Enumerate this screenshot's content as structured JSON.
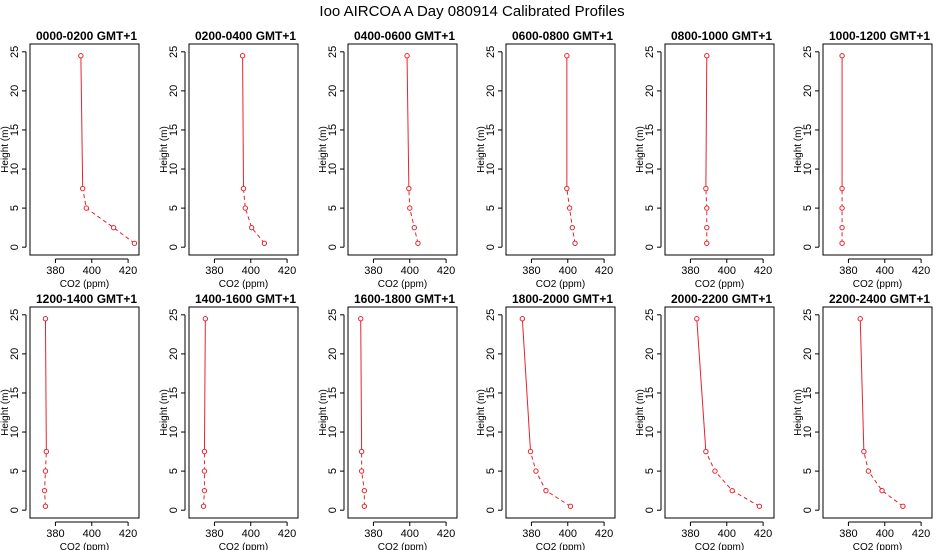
{
  "title": "Ioo AIRCOA A  Day 080914  Calibrated Profiles",
  "colors": {
    "line": "#e8232d",
    "axis": "#000000",
    "background": "#ffffff"
  },
  "chart_data": [
    {
      "type": "line",
      "title": "0000-0200 GMT+1",
      "xlabel": "CO2 (ppm)",
      "ylabel": "Height (m)",
      "xlim": [
        366,
        426
      ],
      "ylim": [
        -1,
        26
      ],
      "xticks": [
        380,
        400,
        420
      ],
      "yticks": [
        0,
        5,
        10,
        15,
        20,
        25
      ],
      "x": [
        423.5,
        412,
        397,
        395,
        394
      ],
      "y": [
        0.5,
        2.5,
        5,
        7.5,
        24.5
      ]
    },
    {
      "type": "line",
      "title": "0200-0400 GMT+1",
      "xlabel": "CO2 (ppm)",
      "ylabel": "Height (m)",
      "xlim": [
        366,
        426
      ],
      "ylim": [
        -1,
        26
      ],
      "xticks": [
        380,
        400,
        420
      ],
      "yticks": [
        0,
        5,
        10,
        15,
        20,
        25
      ],
      "x": [
        407.5,
        400.5,
        397,
        396,
        395.5
      ],
      "y": [
        0.5,
        2.5,
        5,
        7.5,
        24.5
      ]
    },
    {
      "type": "line",
      "title": "0400-0600 GMT+1",
      "xlabel": "CO2 (ppm)",
      "ylabel": "Height (m)",
      "xlim": [
        366,
        426
      ],
      "ylim": [
        -1,
        26
      ],
      "xticks": [
        380,
        400,
        420
      ],
      "yticks": [
        0,
        5,
        10,
        15,
        20,
        25
      ],
      "x": [
        404.5,
        402.5,
        400,
        399.5,
        398.5
      ],
      "y": [
        0.5,
        2.5,
        5,
        7.5,
        24.5
      ]
    },
    {
      "type": "line",
      "title": "0600-0800 GMT+1",
      "xlabel": "CO2 (ppm)",
      "ylabel": "Height (m)",
      "xlim": [
        366,
        426
      ],
      "ylim": [
        -1,
        26
      ],
      "xticks": [
        380,
        400,
        420
      ],
      "yticks": [
        0,
        5,
        10,
        15,
        20,
        25
      ],
      "x": [
        404,
        402.5,
        401,
        399.5,
        399.5
      ],
      "y": [
        0.5,
        2.5,
        5,
        7.5,
        24.5
      ]
    },
    {
      "type": "line",
      "title": "0800-1000 GMT+1",
      "xlabel": "CO2 (ppm)",
      "ylabel": "Height (m)",
      "xlim": [
        366,
        426
      ],
      "ylim": [
        -1,
        26
      ],
      "xticks": [
        380,
        400,
        420
      ],
      "yticks": [
        0,
        5,
        10,
        15,
        20,
        25
      ],
      "x": [
        389,
        389,
        389,
        388.5,
        389
      ],
      "y": [
        0.5,
        2.5,
        5,
        7.5,
        24.5
      ]
    },
    {
      "type": "line",
      "title": "1000-1200 GMT+1",
      "xlabel": "CO2 (ppm)",
      "ylabel": "Height (m)",
      "xlim": [
        366,
        426
      ],
      "ylim": [
        -1,
        26
      ],
      "xticks": [
        380,
        400,
        420
      ],
      "yticks": [
        0,
        5,
        10,
        15,
        20,
        25
      ],
      "x": [
        376.5,
        376.5,
        376.5,
        376.5,
        376.5
      ],
      "y": [
        0.5,
        2.5,
        5,
        7.5,
        24.5
      ]
    },
    {
      "type": "line",
      "title": "1200-1400 GMT+1",
      "xlabel": "CO2 (ppm)",
      "ylabel": "Height (m)",
      "xlim": [
        366,
        426
      ],
      "ylim": [
        -1,
        26
      ],
      "xticks": [
        380,
        400,
        420
      ],
      "yticks": [
        0,
        5,
        10,
        15,
        20,
        25
      ],
      "x": [
        374.5,
        374,
        374.5,
        375,
        374.5
      ],
      "y": [
        0.5,
        2.5,
        5,
        7.5,
        24.5
      ]
    },
    {
      "type": "line",
      "title": "1400-1600 GMT+1",
      "xlabel": "CO2 (ppm)",
      "ylabel": "Height (m)",
      "xlim": [
        366,
        426
      ],
      "ylim": [
        -1,
        26
      ],
      "xticks": [
        380,
        400,
        420
      ],
      "yticks": [
        0,
        5,
        10,
        15,
        20,
        25
      ],
      "x": [
        374,
        374.5,
        374.5,
        374.5,
        375
      ],
      "y": [
        0.5,
        2.5,
        5,
        7.5,
        24.5
      ]
    },
    {
      "type": "line",
      "title": "1600-1800 GMT+1",
      "xlabel": "CO2 (ppm)",
      "ylabel": "Height (m)",
      "xlim": [
        366,
        426
      ],
      "ylim": [
        -1,
        26
      ],
      "xticks": [
        380,
        400,
        420
      ],
      "yticks": [
        0,
        5,
        10,
        15,
        20,
        25
      ],
      "x": [
        375,
        375,
        373.5,
        373.5,
        373
      ],
      "y": [
        0.5,
        2.5,
        5,
        7.5,
        24.5
      ]
    },
    {
      "type": "line",
      "title": "1800-2000 GMT+1",
      "xlabel": "CO2 (ppm)",
      "ylabel": "Height (m)",
      "xlim": [
        366,
        426
      ],
      "ylim": [
        -1,
        26
      ],
      "xticks": [
        380,
        400,
        420
      ],
      "yticks": [
        0,
        5,
        10,
        15,
        20,
        25
      ],
      "x": [
        401.5,
        388,
        382.5,
        379.5,
        375
      ],
      "y": [
        0.5,
        2.5,
        5,
        7.5,
        24.5
      ]
    },
    {
      "type": "line",
      "title": "2000-2200 GMT+1",
      "xlabel": "CO2 (ppm)",
      "ylabel": "Height (m)",
      "xlim": [
        366,
        426
      ],
      "ylim": [
        -1,
        26
      ],
      "xticks": [
        380,
        400,
        420
      ],
      "yticks": [
        0,
        5,
        10,
        15,
        20,
        25
      ],
      "x": [
        418,
        403,
        393.5,
        388.5,
        383.5
      ],
      "y": [
        0.5,
        2.5,
        5,
        7.5,
        24.5
      ]
    },
    {
      "type": "line",
      "title": "2200-2400 GMT+1",
      "xlabel": "CO2 (ppm)",
      "ylabel": "Height (m)",
      "xlim": [
        366,
        426
      ],
      "ylim": [
        -1,
        26
      ],
      "xticks": [
        380,
        400,
        420
      ],
      "yticks": [
        0,
        5,
        10,
        15,
        20,
        25
      ],
      "x": [
        410,
        398.5,
        391,
        388.5,
        386.5
      ],
      "y": [
        0.5,
        2.5,
        5,
        7.5,
        24.5
      ]
    }
  ]
}
